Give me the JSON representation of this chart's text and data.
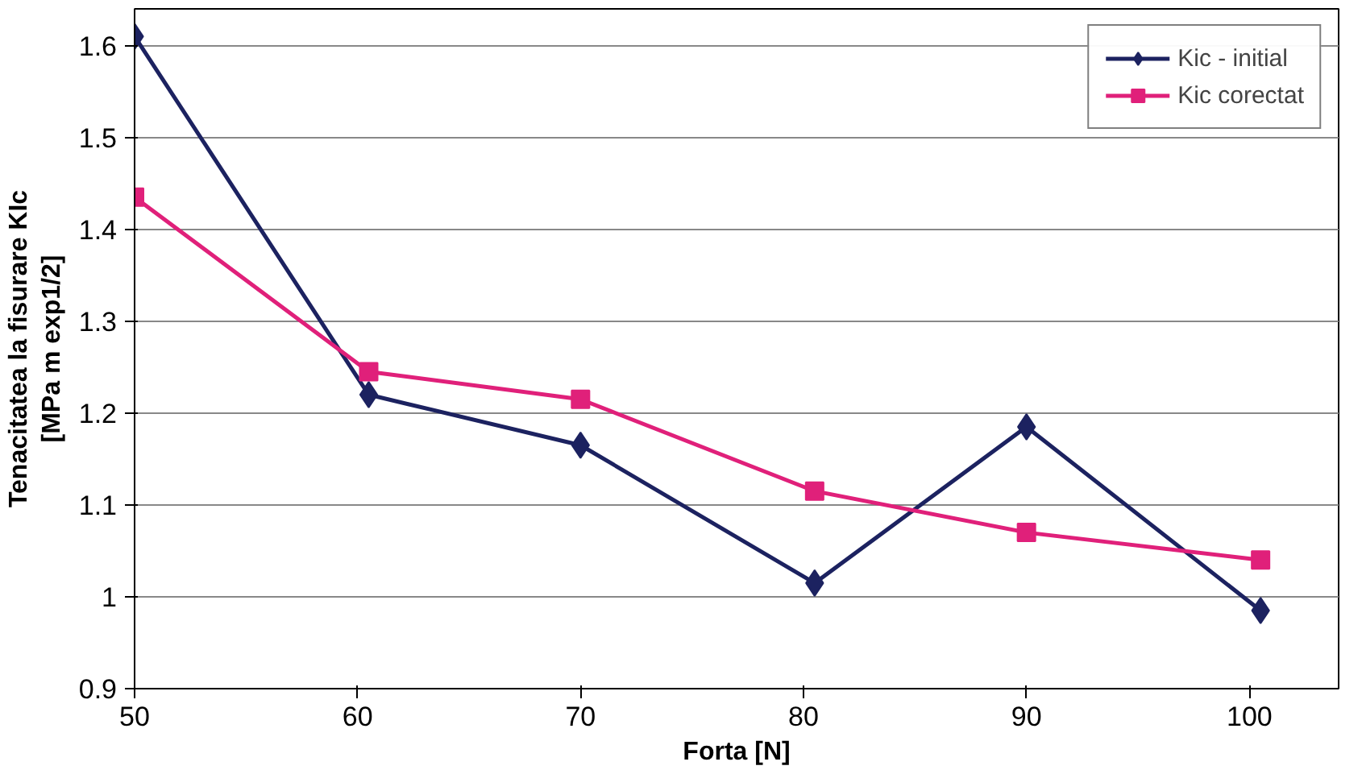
{
  "chart_data": {
    "type": "line",
    "xlabel": "Forta [N]",
    "ylabel": "Tenacitatea la fisurare KIc\n[MPa m exp1/2]",
    "x": [
      50,
      60.5,
      70,
      80.5,
      90,
      100.5
    ],
    "series": [
      {
        "name": "Kic - initial",
        "color": "#1c2260",
        "marker": "diamond",
        "values": [
          1.61,
          1.22,
          1.165,
          1.015,
          1.185,
          0.985
        ]
      },
      {
        "name": "Kic corectat",
        "color": "#e0207a",
        "marker": "square",
        "values": [
          1.435,
          1.245,
          1.215,
          1.115,
          1.07,
          1.04
        ]
      }
    ],
    "xlim": [
      50,
      104
    ],
    "xticks": [
      50,
      60,
      70,
      80,
      90,
      100
    ],
    "ylim": [
      0.9,
      1.64
    ],
    "yticks": [
      0.9,
      1,
      1.1,
      1.2,
      1.3,
      1.4,
      1.5,
      1.6
    ],
    "grid": "y",
    "legend": "top right",
    "line_style": "solid"
  }
}
